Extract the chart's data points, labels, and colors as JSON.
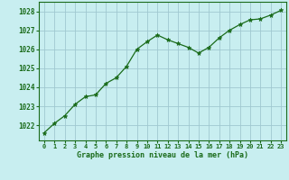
{
  "x": [
    0,
    1,
    2,
    3,
    4,
    5,
    6,
    7,
    8,
    9,
    10,
    11,
    12,
    13,
    14,
    15,
    16,
    17,
    18,
    19,
    20,
    21,
    22,
    23
  ],
  "y": [
    1021.6,
    1022.1,
    1022.5,
    1023.1,
    1023.5,
    1023.6,
    1024.2,
    1024.5,
    1025.1,
    1026.0,
    1026.4,
    1026.75,
    1026.5,
    1026.3,
    1026.1,
    1025.8,
    1026.1,
    1026.6,
    1027.0,
    1027.3,
    1027.55,
    1027.6,
    1027.8,
    1028.05
  ],
  "line_color": "#1a6b1a",
  "marker_color": "#1a6b1a",
  "bg_color": "#c8eef0",
  "grid_color": "#a0c8d0",
  "xlabel": "Graphe pression niveau de la mer (hPa)",
  "xlabel_color": "#1a6b1a",
  "ytick_labels": [
    1022,
    1023,
    1024,
    1025,
    1026,
    1027,
    1028
  ],
  "ylim": [
    1021.2,
    1028.5
  ],
  "xlim": [
    -0.5,
    23.5
  ],
  "tick_color": "#1a6b1a",
  "border_color": "#1a6b1a"
}
